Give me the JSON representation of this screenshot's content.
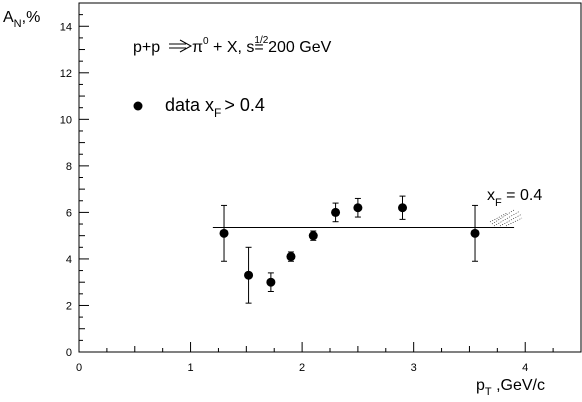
{
  "chart_data": {
    "type": "scatter",
    "ylabel_main": "A",
    "ylabel_sub": "N",
    "ylabel_unit": ",%",
    "xlabel_main": "p",
    "xlabel_sub": "T",
    "xlabel_unit": " ,GeV/c",
    "reaction_lhs": "p+p",
    "reaction_pi": "π",
    "reaction_pi_sup": "0",
    "reaction_rest": " + X, s",
    "reaction_sqrt_sup": "1/2",
    "reaction_energy": "= 200 GeV",
    "legend_prefix": "data x",
    "legend_sub": "F",
    "legend_suffix": "> 0.4",
    "fit_label_prefix": "x",
    "fit_label_sub": "F",
    "fit_label_suffix": " = 0.4",
    "xlim": [
      0,
      4.5
    ],
    "ylim": [
      0,
      15
    ],
    "xticks": [
      0,
      1,
      2,
      3,
      4
    ],
    "yticks": [
      0,
      2,
      4,
      6,
      8,
      10,
      12,
      14
    ],
    "points": [
      {
        "x": 1.3,
        "y": 5.1,
        "err": 1.2
      },
      {
        "x": 1.52,
        "y": 3.3,
        "err": 1.2
      },
      {
        "x": 1.72,
        "y": 3.0,
        "err": 0.4
      },
      {
        "x": 1.9,
        "y": 4.1,
        "err": 0.2
      },
      {
        "x": 2.1,
        "y": 5.0,
        "err": 0.2
      },
      {
        "x": 2.3,
        "y": 6.0,
        "err": 0.4
      },
      {
        "x": 2.5,
        "y": 6.2,
        "err": 0.4
      },
      {
        "x": 2.9,
        "y": 6.2,
        "err": 0.5
      },
      {
        "x": 3.55,
        "y": 5.1,
        "err": 1.2
      }
    ],
    "fit_line": {
      "x_start": 1.2,
      "x_end": 3.9,
      "y": 5.35
    }
  }
}
